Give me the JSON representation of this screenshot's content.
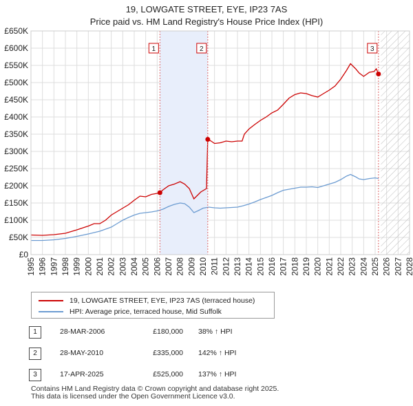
{
  "chart_data": {
    "type": "line",
    "title": "19, LOWGATE STREET, EYE, IP23 7AS",
    "subtitle": "Price paid vs. HM Land Registry's House Price Index (HPI)",
    "xlim": [
      1995,
      2028
    ],
    "ylim": [
      0,
      650000
    ],
    "x_ticks": [
      "1995",
      "1996",
      "1997",
      "1998",
      "1999",
      "2000",
      "2001",
      "2002",
      "2003",
      "2004",
      "2005",
      "2006",
      "2007",
      "2008",
      "2009",
      "2010",
      "2011",
      "2012",
      "2013",
      "2014",
      "2015",
      "2016",
      "2017",
      "2018",
      "2019",
      "2020",
      "2021",
      "2022",
      "2023",
      "2024",
      "2025",
      "2026",
      "2027",
      "2028"
    ],
    "y_ticks": [
      {
        "value": 0,
        "label": "£0"
      },
      {
        "value": 50000,
        "label": "£50K"
      },
      {
        "value": 100000,
        "label": "£100K"
      },
      {
        "value": 150000,
        "label": "£150K"
      },
      {
        "value": 200000,
        "label": "£200K"
      },
      {
        "value": 250000,
        "label": "£250K"
      },
      {
        "value": 300000,
        "label": "£300K"
      },
      {
        "value": 350000,
        "label": "£350K"
      },
      {
        "value": 400000,
        "label": "£400K"
      },
      {
        "value": 450000,
        "label": "£450K"
      },
      {
        "value": 500000,
        "label": "£500K"
      },
      {
        "value": 550000,
        "label": "£550K"
      },
      {
        "value": 600000,
        "label": "£600K"
      },
      {
        "value": 650000,
        "label": "£650K"
      }
    ],
    "grid": true,
    "shaded_span": [
      2006.24,
      2010.41
    ],
    "future_hatch_from": 2025.5,
    "series": [
      {
        "name": "19, LOWGATE STREET, EYE, IP23 7AS (terraced house)",
        "color": "#cc0000",
        "points": [
          [
            1995.0,
            57000
          ],
          [
            1996.0,
            56000
          ],
          [
            1997.0,
            58000
          ],
          [
            1998.0,
            62000
          ],
          [
            1999.0,
            72000
          ],
          [
            2000.0,
            83000
          ],
          [
            2000.5,
            90000
          ],
          [
            2001.0,
            90000
          ],
          [
            2001.5,
            100000
          ],
          [
            2002.0,
            115000
          ],
          [
            2002.5,
            125000
          ],
          [
            2003.0,
            135000
          ],
          [
            2003.5,
            145000
          ],
          [
            2004.0,
            158000
          ],
          [
            2004.5,
            170000
          ],
          [
            2005.0,
            168000
          ],
          [
            2005.5,
            175000
          ],
          [
            2006.0,
            178000
          ],
          [
            2006.24,
            180000
          ],
          [
            2006.5,
            188000
          ],
          [
            2007.0,
            200000
          ],
          [
            2007.5,
            205000
          ],
          [
            2008.0,
            212000
          ],
          [
            2008.4,
            205000
          ],
          [
            2008.8,
            192000
          ],
          [
            2009.2,
            162000
          ],
          [
            2009.5,
            172000
          ],
          [
            2009.8,
            182000
          ],
          [
            2010.3,
            192000
          ],
          [
            2010.41,
            335000
          ],
          [
            2010.7,
            330000
          ],
          [
            2011.0,
            323000
          ],
          [
            2011.5,
            325000
          ],
          [
            2012.0,
            330000
          ],
          [
            2012.5,
            328000
          ],
          [
            2013.0,
            330000
          ],
          [
            2013.4,
            330000
          ],
          [
            2013.6,
            350000
          ],
          [
            2014.0,
            365000
          ],
          [
            2014.5,
            378000
          ],
          [
            2015.0,
            390000
          ],
          [
            2015.5,
            400000
          ],
          [
            2016.0,
            412000
          ],
          [
            2016.5,
            420000
          ],
          [
            2017.0,
            437000
          ],
          [
            2017.5,
            455000
          ],
          [
            2018.0,
            465000
          ],
          [
            2018.5,
            470000
          ],
          [
            2019.0,
            468000
          ],
          [
            2019.5,
            462000
          ],
          [
            2020.0,
            458000
          ],
          [
            2020.5,
            468000
          ],
          [
            2021.0,
            478000
          ],
          [
            2021.5,
            490000
          ],
          [
            2022.0,
            510000
          ],
          [
            2022.5,
            535000
          ],
          [
            2022.85,
            555000
          ],
          [
            2023.3,
            540000
          ],
          [
            2023.6,
            528000
          ],
          [
            2024.0,
            518000
          ],
          [
            2024.5,
            530000
          ],
          [
            2024.9,
            532000
          ],
          [
            2025.1,
            540000
          ],
          [
            2025.29,
            525000
          ]
        ]
      },
      {
        "name": "HPI: Average price, terraced house, Mid Suffolk",
        "color": "#6b9bd1",
        "points": [
          [
            1995.0,
            41000
          ],
          [
            1996.0,
            41000
          ],
          [
            1997.0,
            43000
          ],
          [
            1998.0,
            47000
          ],
          [
            1999.0,
            53000
          ],
          [
            2000.0,
            60000
          ],
          [
            2001.0,
            68000
          ],
          [
            2002.0,
            80000
          ],
          [
            2002.5,
            90000
          ],
          [
            2003.0,
            100000
          ],
          [
            2003.5,
            108000
          ],
          [
            2004.0,
            115000
          ],
          [
            2004.5,
            120000
          ],
          [
            2005.0,
            122000
          ],
          [
            2005.5,
            124000
          ],
          [
            2006.0,
            127000
          ],
          [
            2006.5,
            132000
          ],
          [
            2007.0,
            140000
          ],
          [
            2007.5,
            146000
          ],
          [
            2008.0,
            150000
          ],
          [
            2008.4,
            148000
          ],
          [
            2008.8,
            138000
          ],
          [
            2009.2,
            122000
          ],
          [
            2009.6,
            128000
          ],
          [
            2010.0,
            135000
          ],
          [
            2010.5,
            138000
          ],
          [
            2011.0,
            136000
          ],
          [
            2011.5,
            135000
          ],
          [
            2012.0,
            136000
          ],
          [
            2012.5,
            137000
          ],
          [
            2013.0,
            138000
          ],
          [
            2013.5,
            142000
          ],
          [
            2014.0,
            147000
          ],
          [
            2014.5,
            153000
          ],
          [
            2015.0,
            160000
          ],
          [
            2015.5,
            166000
          ],
          [
            2016.0,
            172000
          ],
          [
            2016.5,
            180000
          ],
          [
            2017.0,
            187000
          ],
          [
            2017.5,
            190000
          ],
          [
            2018.0,
            193000
          ],
          [
            2018.5,
            196000
          ],
          [
            2019.0,
            196000
          ],
          [
            2019.5,
            197000
          ],
          [
            2020.0,
            195000
          ],
          [
            2020.5,
            200000
          ],
          [
            2021.0,
            205000
          ],
          [
            2021.5,
            210000
          ],
          [
            2022.0,
            218000
          ],
          [
            2022.5,
            228000
          ],
          [
            2022.85,
            233000
          ],
          [
            2023.3,
            226000
          ],
          [
            2023.6,
            220000
          ],
          [
            2024.0,
            218000
          ],
          [
            2024.5,
            221000
          ],
          [
            2025.0,
            223000
          ],
          [
            2025.3,
            221000
          ]
        ]
      }
    ],
    "sales": [
      {
        "id": "1",
        "x": 2006.24,
        "price": 180000
      },
      {
        "id": "2",
        "x": 2010.41,
        "price": 335000
      },
      {
        "id": "3",
        "x": 2025.29,
        "price": 525000
      }
    ]
  },
  "legend": {
    "property_label": "19, LOWGATE STREET, EYE, IP23 7AS (terraced house)",
    "hpi_label": "HPI: Average price, terraced house, Mid Suffolk",
    "property_color": "#cc0000",
    "hpi_color": "#6b9bd1"
  },
  "transactions": [
    {
      "num": "1",
      "date": "28-MAR-2006",
      "price": "£180,000",
      "hpi": "38% ↑ HPI"
    },
    {
      "num": "2",
      "date": "28-MAY-2010",
      "price": "£335,000",
      "hpi": "142% ↑ HPI"
    },
    {
      "num": "3",
      "date": "17-APR-2025",
      "price": "£525,000",
      "hpi": "137% ↑ HPI"
    }
  ],
  "footer": {
    "line1": "Contains HM Land Registry data © Crown copyright and database right 2025.",
    "line2": "This data is licensed under the Open Government Licence v3.0."
  }
}
